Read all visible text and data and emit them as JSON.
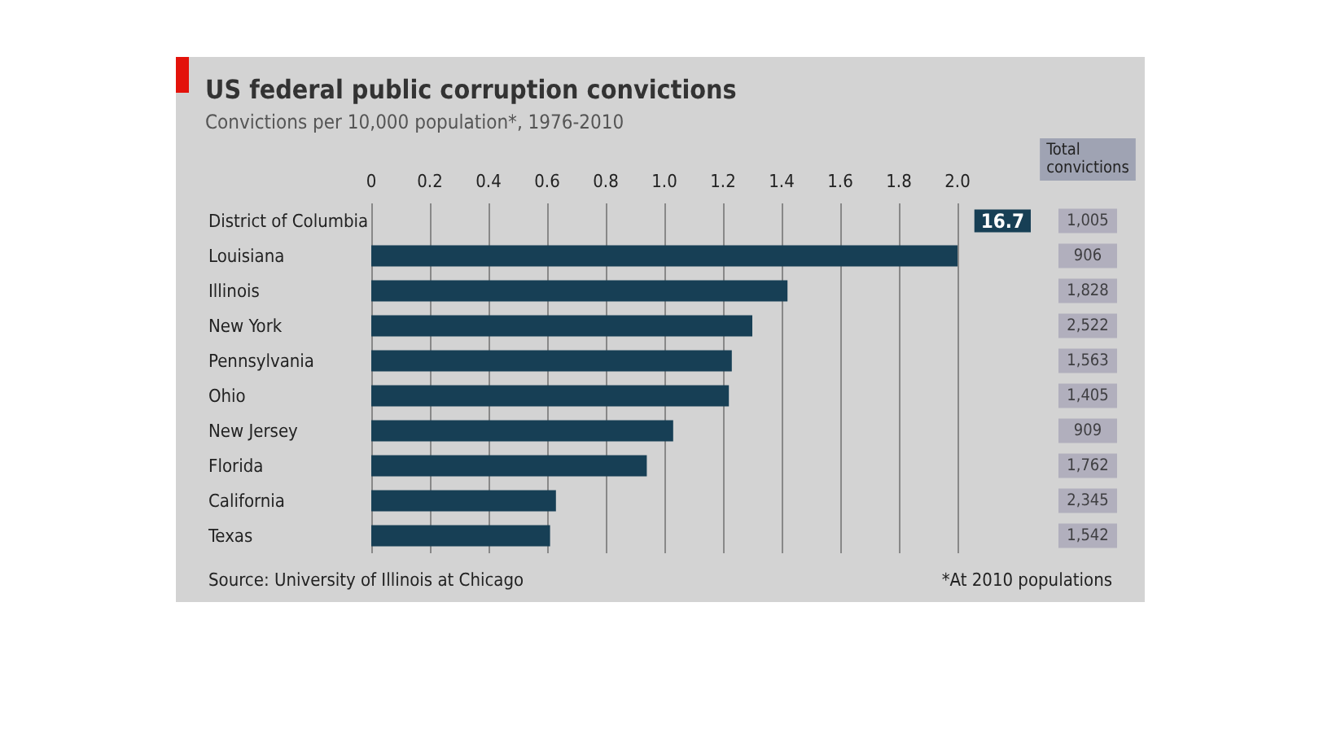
{
  "chart_data": [
    {
      "type": "bar",
      "orientation": "horizontal",
      "title": "US federal public corruption convictions",
      "subtitle": "Convictions per 10,000 population*, 1976-2010",
      "categories": [
        "District of Columbia",
        "Louisiana",
        "Illinois",
        "New York",
        "Pennsylvania",
        "Ohio",
        "New Jersey",
        "Florida",
        "California",
        "Texas"
      ],
      "values": [
        null,
        2.0,
        1.42,
        1.3,
        1.23,
        1.22,
        1.03,
        0.94,
        0.63,
        0.61
      ],
      "color": "#173f55",
      "value_labels": [
        "16.7",
        null,
        null,
        null,
        null,
        null,
        null,
        null,
        null,
        null
      ],
      "xlim": [
        0,
        2.25
      ],
      "xticks": [
        0,
        0.2,
        0.4,
        0.6,
        0.8,
        {
          "value": 1.0,
          "label": "1.0"
        },
        1.2,
        1.4,
        1.6,
        1.8,
        {
          "value": 2.0,
          "label": "2.0"
        }
      ],
      "grid": "x",
      "annotations": [
        "Source: University of Illinois at Chicago",
        "*At 2010 populations"
      ]
    },
    {
      "type": "other",
      "title": "Total convictions",
      "categories": [
        null,
        null,
        null,
        null,
        null,
        null,
        null,
        null,
        null,
        null
      ],
      "values": [
        1005,
        906,
        1828,
        2522,
        1563,
        1405,
        909,
        1762,
        2345,
        1542
      ],
      "value_labels": [
        "1,005",
        "906",
        "1,828",
        "2,522",
        "1,563",
        "1,405",
        "909",
        "1,762",
        "2,345",
        "1,542"
      ],
      "color": "#a9a6b8"
    }
  ]
}
